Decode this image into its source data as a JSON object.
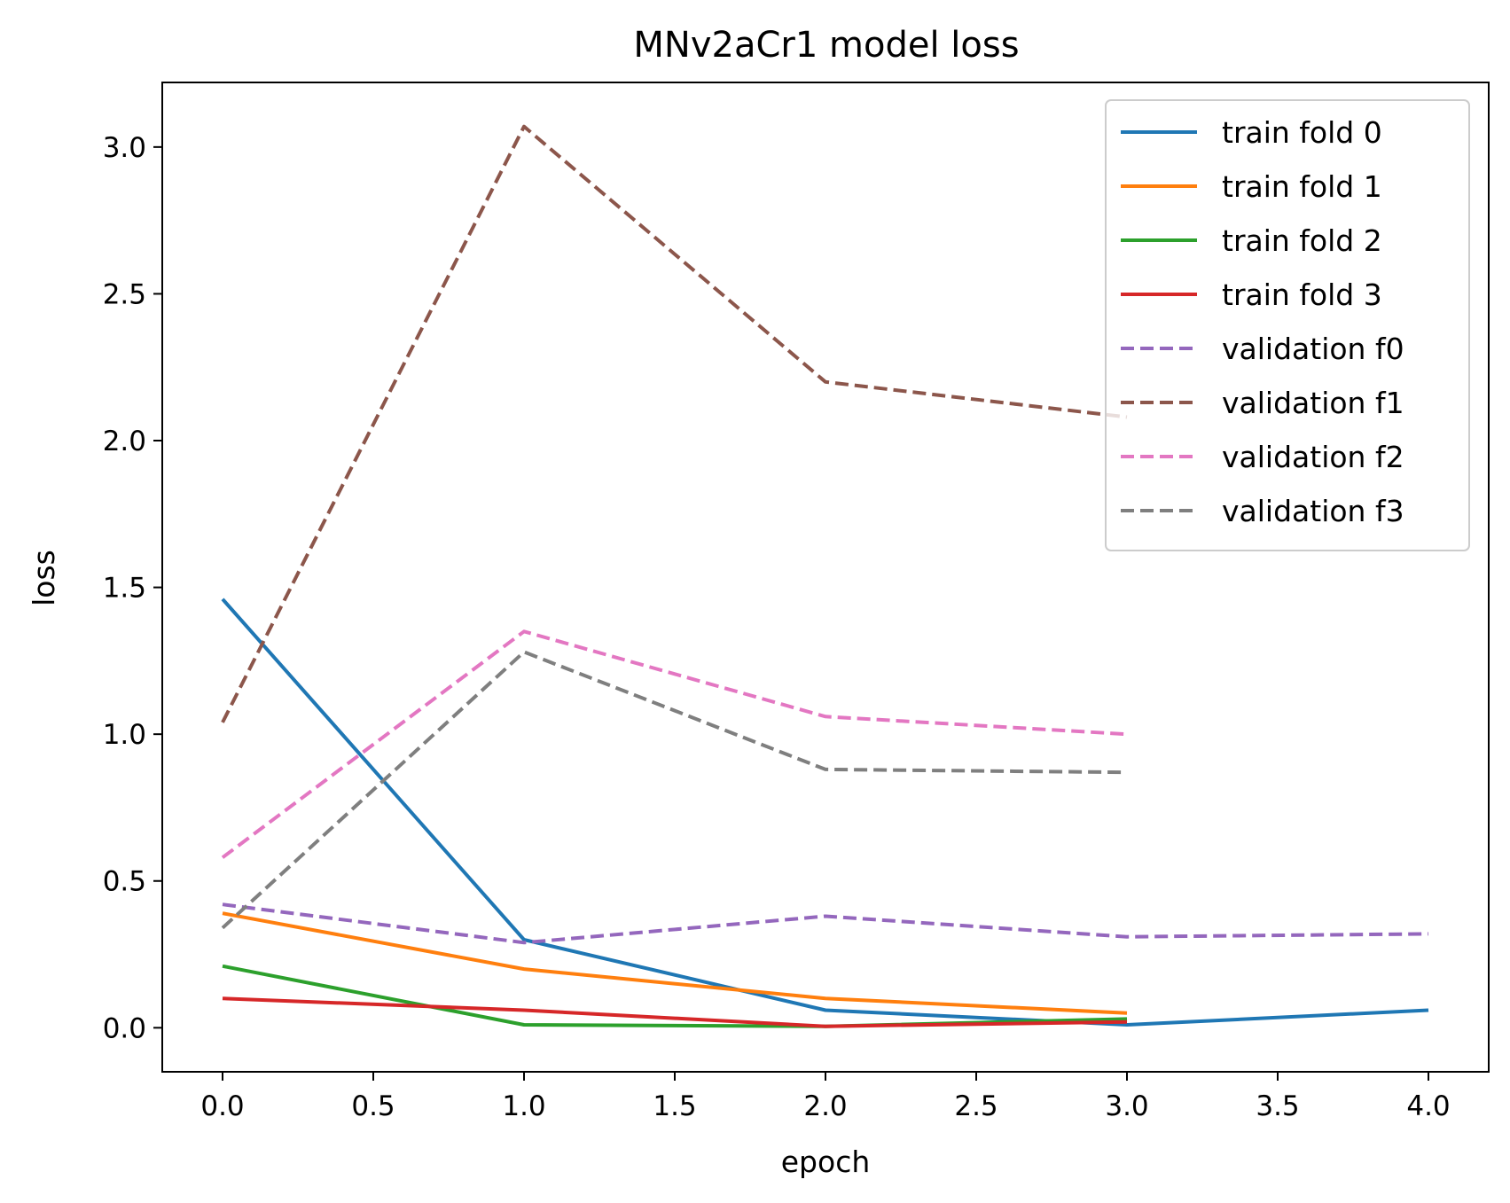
{
  "chart_data": {
    "type": "line",
    "title": "MNv2aCr1 model loss",
    "xlabel": "epoch",
    "ylabel": "loss",
    "xlim": [
      -0.2,
      4.2
    ],
    "ylim": [
      -0.15,
      3.22
    ],
    "xticks": [
      0.0,
      0.5,
      1.0,
      1.5,
      2.0,
      2.5,
      3.0,
      3.5,
      4.0
    ],
    "xtick_labels": [
      "0.0",
      "0.5",
      "1.0",
      "1.5",
      "2.0",
      "2.5",
      "3.0",
      "3.5",
      "4.0"
    ],
    "yticks": [
      0.0,
      0.5,
      1.0,
      1.5,
      2.0,
      2.5,
      3.0
    ],
    "ytick_labels": [
      "0.0",
      "0.5",
      "1.0",
      "1.5",
      "2.0",
      "2.5",
      "3.0"
    ],
    "grid": false,
    "legend_position": "top-right",
    "series": [
      {
        "name": "train fold 0",
        "color": "#1f77b4",
        "style": "solid",
        "x": [
          0,
          1,
          2,
          3,
          4
        ],
        "y": [
          1.46,
          0.3,
          0.06,
          0.01,
          0.06
        ]
      },
      {
        "name": "train fold 1",
        "color": "#ff7f0e",
        "style": "solid",
        "x": [
          0,
          1,
          2,
          3
        ],
        "y": [
          0.39,
          0.2,
          0.1,
          0.05
        ]
      },
      {
        "name": "train fold 2",
        "color": "#2ca02c",
        "style": "solid",
        "x": [
          0,
          1,
          2,
          3
        ],
        "y": [
          0.21,
          0.01,
          0.005,
          0.03
        ]
      },
      {
        "name": "train fold 3",
        "color": "#d62728",
        "style": "solid",
        "x": [
          0,
          1,
          2,
          3
        ],
        "y": [
          0.1,
          0.06,
          0.005,
          0.02
        ]
      },
      {
        "name": "validation f0",
        "color": "#9467bd",
        "style": "dashed",
        "x": [
          0,
          1,
          2,
          3,
          4
        ],
        "y": [
          0.42,
          0.29,
          0.38,
          0.31,
          0.32
        ]
      },
      {
        "name": "validation f1",
        "color": "#8c564b",
        "style": "dashed",
        "x": [
          0,
          1,
          2,
          3
        ],
        "y": [
          1.04,
          3.07,
          2.2,
          2.08
        ]
      },
      {
        "name": "validation f2",
        "color": "#e377c2",
        "style": "dashed",
        "x": [
          0,
          1,
          2,
          3
        ],
        "y": [
          0.58,
          1.35,
          1.06,
          1.0
        ]
      },
      {
        "name": "validation f3",
        "color": "#7f7f7f",
        "style": "dashed",
        "x": [
          0,
          1,
          2,
          3
        ],
        "y": [
          0.34,
          1.28,
          0.88,
          0.87
        ]
      }
    ]
  }
}
